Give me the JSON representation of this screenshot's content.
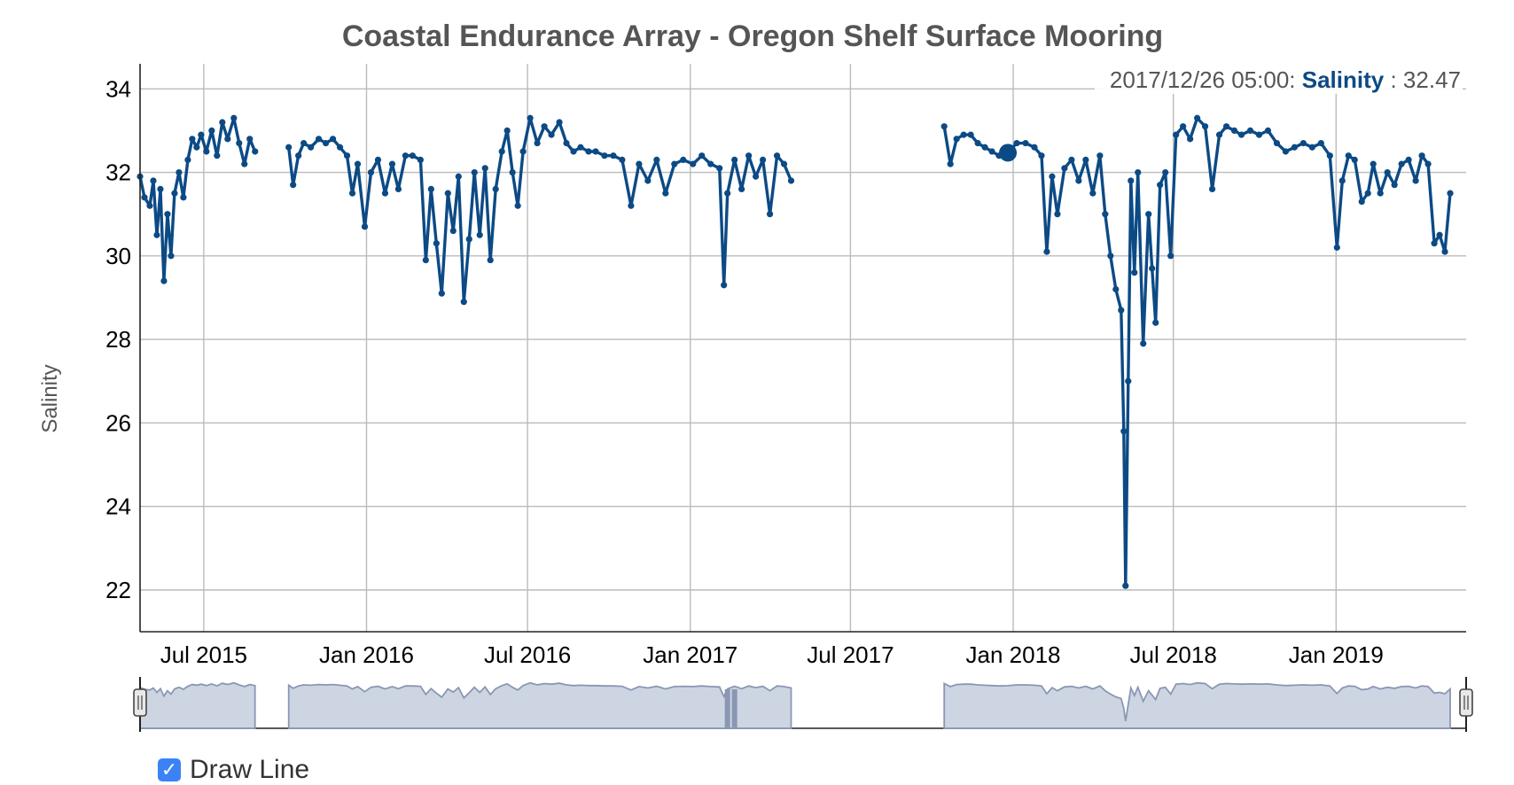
{
  "chart_data": {
    "type": "line",
    "title": "Coastal Endurance Array - Oregon Shelf Surface Mooring",
    "ylabel": "Salinity",
    "xlabel": "",
    "ylim": [
      21,
      34.6
    ],
    "xlim": [
      "2015-04-20",
      "2019-05-28"
    ],
    "yticks": [
      22,
      24,
      26,
      28,
      30,
      32,
      34
    ],
    "xticks": [
      {
        "date": "2015-07-01",
        "label": "Jul 2015"
      },
      {
        "date": "2016-01-01",
        "label": "Jan 2016"
      },
      {
        "date": "2016-07-01",
        "label": "Jul 2016"
      },
      {
        "date": "2017-01-01",
        "label": "Jan 2017"
      },
      {
        "date": "2017-07-01",
        "label": "Jul 2017"
      },
      {
        "date": "2018-01-01",
        "label": "Jan 2018"
      },
      {
        "date": "2018-07-01",
        "label": "Jul 2018"
      },
      {
        "date": "2019-01-01",
        "label": "Jan 2019"
      }
    ],
    "grid": true,
    "series": [
      {
        "name": "Salinity",
        "color": "#0c4a85",
        "segments": [
          [
            [
              "2015-04-20",
              31.9
            ],
            [
              "2015-04-25",
              31.4
            ],
            [
              "2015-05-01",
              31.2
            ],
            [
              "2015-05-05",
              31.8
            ],
            [
              "2015-05-09",
              30.5
            ],
            [
              "2015-05-13",
              31.6
            ],
            [
              "2015-05-17",
              29.4
            ],
            [
              "2015-05-21",
              31.0
            ],
            [
              "2015-05-25",
              30.0
            ],
            [
              "2015-05-29",
              31.5
            ],
            [
              "2015-06-03",
              32.0
            ],
            [
              "2015-06-08",
              31.4
            ],
            [
              "2015-06-13",
              32.3
            ],
            [
              "2015-06-18",
              32.8
            ],
            [
              "2015-06-23",
              32.6
            ],
            [
              "2015-06-28",
              32.9
            ],
            [
              "2015-07-04",
              32.5
            ],
            [
              "2015-07-10",
              33.0
            ],
            [
              "2015-07-16",
              32.4
            ],
            [
              "2015-07-22",
              33.2
            ],
            [
              "2015-07-28",
              32.8
            ],
            [
              "2015-08-04",
              33.3
            ],
            [
              "2015-08-10",
              32.7
            ],
            [
              "2015-08-16",
              32.2
            ],
            [
              "2015-08-22",
              32.8
            ],
            [
              "2015-08-28",
              32.5
            ]
          ],
          [
            [
              "2015-10-05",
              32.6
            ],
            [
              "2015-10-10",
              31.7
            ],
            [
              "2015-10-16",
              32.4
            ],
            [
              "2015-10-22",
              32.7
            ],
            [
              "2015-10-30",
              32.6
            ],
            [
              "2015-11-08",
              32.8
            ],
            [
              "2015-11-16",
              32.7
            ],
            [
              "2015-11-24",
              32.8
            ],
            [
              "2015-12-02",
              32.6
            ],
            [
              "2015-12-10",
              32.4
            ],
            [
              "2015-12-16",
              31.5
            ],
            [
              "2015-12-22",
              32.2
            ],
            [
              "2015-12-30",
              30.7
            ],
            [
              "2016-01-06",
              32.0
            ],
            [
              "2016-01-14",
              32.3
            ],
            [
              "2016-01-22",
              31.5
            ],
            [
              "2016-01-30",
              32.2
            ],
            [
              "2016-02-06",
              31.6
            ],
            [
              "2016-02-14",
              32.4
            ],
            [
              "2016-02-22",
              32.4
            ],
            [
              "2016-03-02",
              32.3
            ],
            [
              "2016-03-08",
              29.9
            ],
            [
              "2016-03-14",
              31.6
            ],
            [
              "2016-03-20",
              30.3
            ],
            [
              "2016-03-26",
              29.1
            ],
            [
              "2016-04-02",
              31.5
            ],
            [
              "2016-04-08",
              30.6
            ],
            [
              "2016-04-14",
              31.9
            ],
            [
              "2016-04-20",
              28.9
            ],
            [
              "2016-04-26",
              30.4
            ],
            [
              "2016-05-02",
              32.0
            ],
            [
              "2016-05-08",
              30.5
            ],
            [
              "2016-05-14",
              32.1
            ],
            [
              "2016-05-20",
              29.9
            ],
            [
              "2016-05-26",
              31.6
            ],
            [
              "2016-06-02",
              32.5
            ],
            [
              "2016-06-08",
              33.0
            ],
            [
              "2016-06-14",
              32.0
            ],
            [
              "2016-06-20",
              31.2
            ],
            [
              "2016-06-26",
              32.5
            ],
            [
              "2016-07-04",
              33.3
            ],
            [
              "2016-07-12",
              32.7
            ],
            [
              "2016-07-20",
              33.1
            ],
            [
              "2016-07-28",
              32.9
            ],
            [
              "2016-08-06",
              33.2
            ],
            [
              "2016-08-14",
              32.7
            ],
            [
              "2016-08-22",
              32.5
            ],
            [
              "2016-08-30",
              32.6
            ],
            [
              "2016-09-08",
              32.5
            ],
            [
              "2016-09-16",
              32.5
            ],
            [
              "2016-09-26",
              32.4
            ],
            [
              "2016-10-06",
              32.4
            ],
            [
              "2016-10-16",
              32.3
            ],
            [
              "2016-10-26",
              31.2
            ],
            [
              "2016-11-04",
              32.2
            ],
            [
              "2016-11-14",
              31.8
            ],
            [
              "2016-11-24",
              32.3
            ],
            [
              "2016-12-04",
              31.5
            ],
            [
              "2016-12-14",
              32.2
            ],
            [
              "2016-12-24",
              32.3
            ],
            [
              "2017-01-04",
              32.2
            ],
            [
              "2017-01-14",
              32.4
            ],
            [
              "2017-01-24",
              32.2
            ],
            [
              "2017-02-03",
              32.1
            ],
            [
              "2017-02-08",
              29.3
            ],
            [
              "2017-02-12",
              31.5
            ],
            [
              "2017-02-20",
              32.3
            ],
            [
              "2017-02-28",
              31.6
            ],
            [
              "2017-03-08",
              32.4
            ],
            [
              "2017-03-16",
              31.9
            ],
            [
              "2017-03-24",
              32.3
            ],
            [
              "2017-04-01",
              31.0
            ],
            [
              "2017-04-09",
              32.4
            ],
            [
              "2017-04-17",
              32.2
            ],
            [
              "2017-04-25",
              31.8
            ]
          ],
          [
            [
              "2017-10-15",
              33.1
            ],
            [
              "2017-10-22",
              32.2
            ],
            [
              "2017-10-29",
              32.8
            ],
            [
              "2017-11-06",
              32.9
            ],
            [
              "2017-11-14",
              32.9
            ],
            [
              "2017-11-22",
              32.7
            ],
            [
              "2017-11-30",
              32.6
            ],
            [
              "2017-12-08",
              32.5
            ],
            [
              "2017-12-16",
              32.4
            ],
            [
              "2017-12-26",
              32.47
            ],
            [
              "2018-01-05",
              32.7
            ],
            [
              "2018-01-15",
              32.7
            ],
            [
              "2018-01-25",
              32.6
            ],
            [
              "2018-02-02",
              32.4
            ],
            [
              "2018-02-08",
              30.1
            ],
            [
              "2018-02-14",
              31.9
            ],
            [
              "2018-02-20",
              31.0
            ],
            [
              "2018-02-28",
              32.1
            ],
            [
              "2018-03-08",
              32.3
            ],
            [
              "2018-03-16",
              31.8
            ],
            [
              "2018-03-24",
              32.3
            ],
            [
              "2018-04-01",
              31.5
            ],
            [
              "2018-04-09",
              32.4
            ],
            [
              "2018-04-15",
              31.0
            ],
            [
              "2018-04-21",
              30.0
            ],
            [
              "2018-04-27",
              29.2
            ],
            [
              "2018-05-03",
              28.7
            ],
            [
              "2018-05-06",
              25.8
            ],
            [
              "2018-05-08",
              22.1
            ],
            [
              "2018-05-11",
              27.0
            ],
            [
              "2018-05-14",
              31.8
            ],
            [
              "2018-05-18",
              29.6
            ],
            [
              "2018-05-22",
              32.0
            ],
            [
              "2018-05-28",
              27.9
            ],
            [
              "2018-06-03",
              31.0
            ],
            [
              "2018-06-07",
              29.7
            ],
            [
              "2018-06-11",
              28.4
            ],
            [
              "2018-06-16",
              31.7
            ],
            [
              "2018-06-22",
              32.0
            ],
            [
              "2018-06-28",
              30.0
            ],
            [
              "2018-07-04",
              32.9
            ],
            [
              "2018-07-12",
              33.1
            ],
            [
              "2018-07-20",
              32.8
            ],
            [
              "2018-07-28",
              33.3
            ],
            [
              "2018-08-06",
              33.1
            ],
            [
              "2018-08-14",
              31.6
            ],
            [
              "2018-08-22",
              32.9
            ],
            [
              "2018-08-30",
              33.1
            ],
            [
              "2018-09-08",
              33.0
            ],
            [
              "2018-09-16",
              32.9
            ],
            [
              "2018-09-26",
              33.0
            ],
            [
              "2018-10-06",
              32.9
            ],
            [
              "2018-10-16",
              33.0
            ],
            [
              "2018-10-26",
              32.7
            ],
            [
              "2018-11-05",
              32.5
            ],
            [
              "2018-11-15",
              32.6
            ],
            [
              "2018-11-25",
              32.7
            ],
            [
              "2018-12-05",
              32.6
            ],
            [
              "2018-12-15",
              32.7
            ],
            [
              "2018-12-25",
              32.4
            ],
            [
              "2019-01-02",
              30.2
            ],
            [
              "2019-01-08",
              31.8
            ],
            [
              "2019-01-15",
              32.4
            ],
            [
              "2019-01-22",
              32.3
            ],
            [
              "2019-01-30",
              31.3
            ],
            [
              "2019-02-06",
              31.5
            ],
            [
              "2019-02-12",
              32.2
            ],
            [
              "2019-02-20",
              31.5
            ],
            [
              "2019-02-28",
              32.0
            ],
            [
              "2019-03-08",
              31.7
            ],
            [
              "2019-03-16",
              32.2
            ],
            [
              "2019-03-24",
              32.3
            ],
            [
              "2019-04-01",
              31.8
            ],
            [
              "2019-04-08",
              32.4
            ],
            [
              "2019-04-15",
              32.2
            ],
            [
              "2019-04-22",
              30.3
            ],
            [
              "2019-04-28",
              30.5
            ],
            [
              "2019-05-04",
              30.1
            ],
            [
              "2019-05-10",
              31.5
            ]
          ]
        ],
        "gap_markers": [
          "2017-02-12",
          "2017-02-20"
        ]
      }
    ],
    "legend": {
      "timestamp": "2017/12/26 05:00:",
      "series_name": "Salinity",
      "separator": ":",
      "value": "32.47"
    },
    "highlight_point": {
      "x": "2017-12-26",
      "y": 32.47
    },
    "range_selector": {
      "start": "2015-04-20",
      "end": "2019-05-28"
    }
  },
  "controls": {
    "draw_line_label": "Draw Line",
    "draw_line_checked": true,
    "check_glyph": "✓"
  }
}
